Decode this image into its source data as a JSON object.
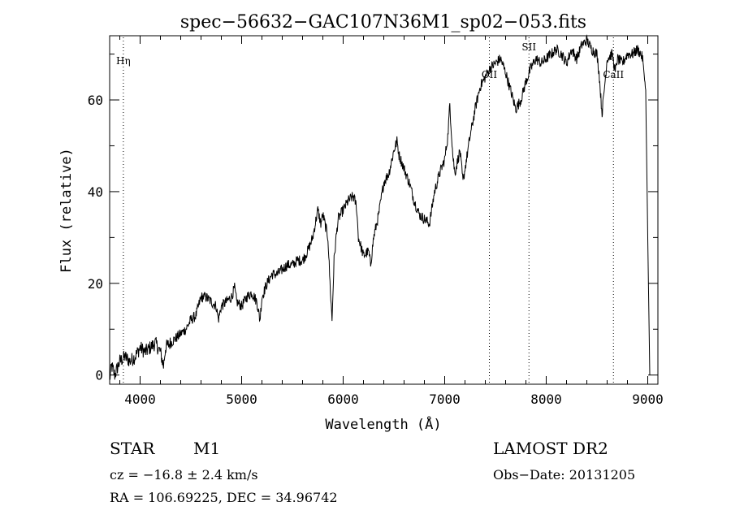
{
  "chart_data": {
    "type": "line",
    "title": "spec−56632−GAC107N36M1_sp02−053.fits",
    "xlabel": "Wavelength (Å)",
    "ylabel": "Flux (relative)",
    "xlim": [
      3700,
      9100
    ],
    "ylim": [
      -2,
      74
    ],
    "xticks": [
      4000,
      5000,
      6000,
      7000,
      8000,
      9000
    ],
    "yticks": [
      0,
      20,
      40,
      60
    ],
    "grid": false,
    "series": [
      {
        "x": [
          3700,
          3720,
          3750,
          3800,
          3850,
          3900,
          3950,
          4000,
          4050,
          4100,
          4150,
          4200,
          4230,
          4250,
          4300,
          4350,
          4400,
          4450,
          4500,
          4550,
          4600,
          4650,
          4700,
          4750,
          4770,
          4800,
          4850,
          4900,
          4930,
          4950,
          5000,
          5050,
          5100,
          5150,
          5180,
          5200,
          5250,
          5300,
          5350,
          5400,
          5450,
          5500,
          5550,
          5600,
          5650,
          5700,
          5750,
          5780,
          5800,
          5830,
          5850,
          5870,
          5890,
          5910,
          5930,
          5950,
          6000,
          6050,
          6100,
          6130,
          6150,
          6200,
          6250,
          6270,
          6300,
          6350,
          6400,
          6450,
          6500,
          6530,
          6550,
          6600,
          6650,
          6700,
          6750,
          6800,
          6850,
          6900,
          6950,
          7000,
          7030,
          7050,
          7080,
          7100,
          7150,
          7180,
          7200,
          7250,
          7300,
          7350,
          7400,
          7450,
          7500,
          7550,
          7600,
          7650,
          7700,
          7750,
          7800,
          7850,
          7900,
          7950,
          8000,
          8050,
          8100,
          8150,
          8200,
          8250,
          8300,
          8350,
          8400,
          8450,
          8500,
          8520,
          8550,
          8600,
          8650,
          8680,
          8700,
          8750,
          8800,
          8850,
          8900,
          8930,
          8950,
          8980,
          9000,
          9020
        ],
        "y": [
          -1,
          2,
          0,
          3,
          4,
          3,
          4,
          6,
          5,
          6,
          7,
          5,
          2,
          6,
          7,
          8,
          9,
          10,
          12,
          13,
          17,
          17,
          16,
          15,
          12,
          15,
          16,
          17,
          19,
          16,
          15,
          17,
          18,
          16,
          12,
          17,
          20,
          22,
          22,
          23,
          24,
          24,
          25,
          25,
          27,
          30,
          36,
          33,
          35,
          32,
          30,
          20,
          12,
          25,
          30,
          34,
          36,
          38,
          39,
          37,
          30,
          26,
          27,
          24,
          30,
          35,
          42,
          44,
          49,
          51,
          48,
          45,
          42,
          38,
          35,
          34,
          33,
          40,
          44,
          47,
          52,
          59,
          48,
          44,
          49,
          42,
          45,
          52,
          58,
          63,
          65,
          67,
          68,
          69,
          66,
          62,
          58,
          60,
          64,
          67,
          69,
          68,
          69,
          70,
          71,
          70,
          68,
          71,
          69,
          72,
          73,
          71,
          70,
          66,
          57,
          69,
          70,
          66,
          69,
          68,
          70,
          70,
          71,
          70,
          69,
          62,
          30,
          0
        ]
      }
    ],
    "annotations": [
      {
        "label": "Hη",
        "x": 3835
      },
      {
        "label": "OII",
        "x": 7440
      },
      {
        "label": "SII",
        "x": 7830
      },
      {
        "label": "CaII",
        "x": 8662
      }
    ]
  },
  "info": {
    "obj_class": "STAR",
    "obj_subclass": "M1",
    "survey": "LAMOST DR2",
    "cz": "cz = −16.8 ± 2.4 km/s",
    "obs_date": "Obs−Date: 20131205",
    "radec": "RA = 106.69225, DEC =  34.96742"
  }
}
